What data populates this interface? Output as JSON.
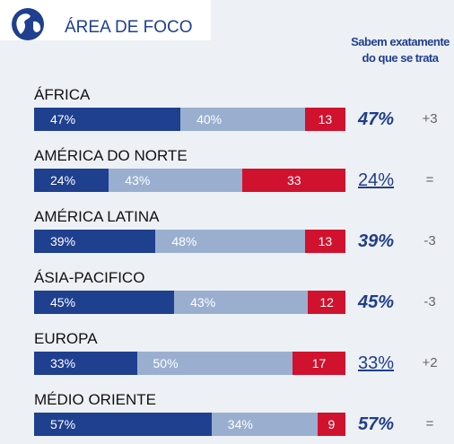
{
  "chart_data": {
    "type": "stacked-bar-horizontal",
    "title": "ÁREA DE FOCO",
    "column_title": "Sabem exatamente do que se trata",
    "categories": [
      "ÁFRICA",
      "AMÉRICA DO NORTE",
      "AMÉRICA LATINA",
      "ÁSIA-PACIFICO",
      "EUROPA",
      "MÉDIO ORIENTE"
    ],
    "xlim": [
      0,
      100
    ],
    "series": [
      {
        "color": "#1f3f8f",
        "values": [
          47,
          24,
          39,
          45,
          33,
          57
        ],
        "value_labels": [
          "47%",
          "24%",
          "39%",
          "45%",
          "33%",
          "57%"
        ]
      },
      {
        "color": "#9aafd0",
        "values": [
          40,
          43,
          48,
          43,
          50,
          34
        ],
        "value_labels": [
          "40%",
          "43%",
          "48%",
          "43%",
          "50%",
          "34%"
        ]
      },
      {
        "color": "#d0122f",
        "values": [
          13,
          33,
          13,
          12,
          17,
          9
        ]
      }
    ],
    "totals": {
      "values": [
        47,
        24,
        39,
        45,
        33,
        57
      ],
      "value_labels": [
        "47%",
        "24%",
        "39%",
        "45%",
        "33%",
        "57%"
      ],
      "underlined": [
        false,
        true,
        false,
        false,
        true,
        false
      ],
      "changes": [
        "+3",
        "=",
        "-3",
        "-3",
        "+2",
        "="
      ]
    }
  }
}
